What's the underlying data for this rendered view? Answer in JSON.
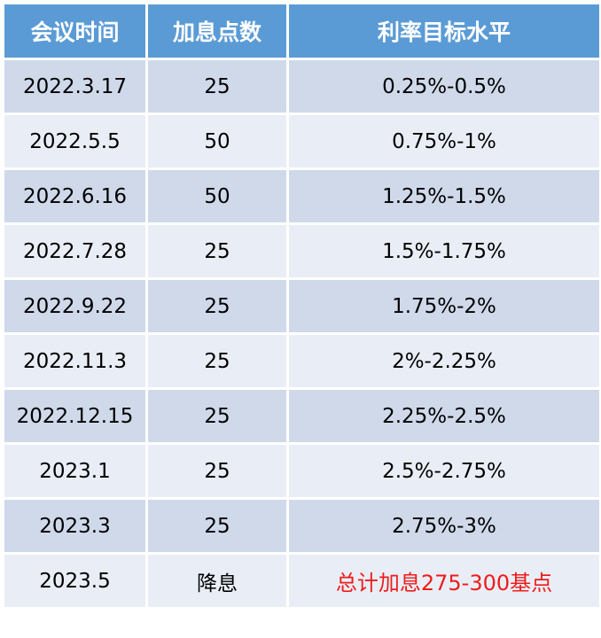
{
  "table": {
    "headers": [
      "会议时间",
      "加息点数",
      "利率目标水平"
    ],
    "rows": [
      [
        "2022.3.17",
        "25",
        "0.25%-0.5%"
      ],
      [
        "2022.5.5",
        "50",
        "0.75%-1%"
      ],
      [
        "2022.6.16",
        "50",
        "1.25%-1.5%"
      ],
      [
        "2022.7.28",
        "25",
        "1.5%-1.75%"
      ],
      [
        "2022.9.22",
        "25",
        "1.75%-2%"
      ],
      [
        "2022.11.3",
        "25",
        "2%-2.25%"
      ],
      [
        "2022.12.15",
        "25",
        "2.25%-2.5%"
      ],
      [
        "2023.1",
        "25",
        "2.5%-2.75%"
      ],
      [
        "2023.3",
        "25",
        "2.75%-3%"
      ],
      [
        "2023.5",
        "降息",
        "总计加息275-300基点"
      ]
    ]
  },
  "colors": {
    "header_bg": "#5b9bd5",
    "row_odd_bg": "#cfd9ea",
    "row_even_bg": "#e9eef6",
    "note_text": "#ee1c1c"
  }
}
